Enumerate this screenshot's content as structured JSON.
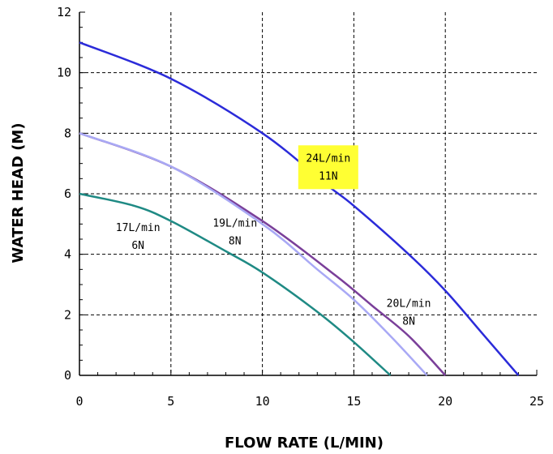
{
  "chart_data": {
    "type": "line",
    "xlabel": "FLOW RATE (L/MIN)",
    "ylabel": "WATER HEAD (M)",
    "xlim": [
      0,
      25
    ],
    "ylim": [
      0,
      12
    ],
    "xticks": [
      0,
      5,
      10,
      15,
      20,
      25
    ],
    "yticks": [
      0,
      2,
      4,
      6,
      8,
      10,
      12
    ],
    "grid": true,
    "series": [
      {
        "color": "#2b2bd9",
        "points": [
          [
            0,
            11.0
          ],
          [
            5,
            9.8
          ],
          [
            10,
            8.0
          ],
          [
            13.5,
            6.3
          ],
          [
            15,
            5.6
          ],
          [
            18,
            4.0
          ],
          [
            20,
            2.8
          ],
          [
            22,
            1.4
          ],
          [
            24,
            0
          ]
        ]
      },
      {
        "color": "#7a3f99",
        "points": [
          [
            0,
            8.0
          ],
          [
            5,
            6.9
          ],
          [
            10,
            5.1
          ],
          [
            14,
            3.3
          ],
          [
            16,
            2.3
          ],
          [
            18,
            1.3
          ],
          [
            20,
            0
          ]
        ]
      },
      {
        "color": "#a9a9f5",
        "points": [
          [
            0,
            8.0
          ],
          [
            5,
            6.9
          ],
          [
            10,
            5.0
          ],
          [
            13,
            3.5
          ],
          [
            15,
            2.5
          ],
          [
            17,
            1.3
          ],
          [
            19,
            0
          ]
        ]
      },
      {
        "color": "#1f8a84",
        "points": [
          [
            0,
            6.0
          ],
          [
            3,
            5.6
          ],
          [
            5,
            5.1
          ],
          [
            8,
            4.1
          ],
          [
            10,
            3.4
          ],
          [
            13,
            2.1
          ],
          [
            15,
            1.1
          ],
          [
            17,
            0
          ]
        ]
      }
    ],
    "annotations": [
      {
        "lines": [
          "24L/min",
          "11N"
        ],
        "x": 13.6,
        "y": 6.85,
        "highlight": "#ffff33"
      },
      {
        "lines": [
          "17L/min",
          "6N"
        ],
        "x": 3.2,
        "y": 4.55
      },
      {
        "lines": [
          "19L/min",
          "8N"
        ],
        "x": 8.5,
        "y": 4.7
      },
      {
        "lines": [
          "20L/min",
          "8N"
        ],
        "x": 18.0,
        "y": 2.05
      }
    ]
  }
}
